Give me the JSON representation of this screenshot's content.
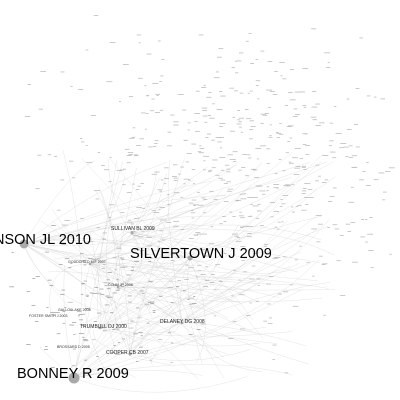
{
  "network": {
    "node_color": "#b5b5b5",
    "edge_color": "#cfcfcf",
    "label_color": "#111111",
    "major_labels": [
      {
        "key": "n1",
        "text": "NSON JL 2010"
      },
      {
        "key": "n2",
        "text": "SILVERTOWN J 2009"
      },
      {
        "key": "n3",
        "text": "BONNEY R 2009"
      }
    ],
    "minor_labels": [
      {
        "key": "m1",
        "text": "SULLIVAN BL 2009"
      },
      {
        "key": "m2",
        "text": "GODDCHILD M F 2007"
      },
      {
        "key": "m3",
        "text": "COHN JP 2008"
      },
      {
        "key": "m4",
        "text": "GALLO&LAKE 2008"
      },
      {
        "key": "m5",
        "text": "FOSTER SMITH J 2003"
      },
      {
        "key": "m6",
        "text": "TRUMBULL DJ 2000"
      },
      {
        "key": "m7",
        "text": "DELANEY DG 2008"
      },
      {
        "key": "m8",
        "text": "BROSSARD D 2005"
      },
      {
        "key": "m9",
        "text": "COOPER CB 2007"
      }
    ]
  }
}
